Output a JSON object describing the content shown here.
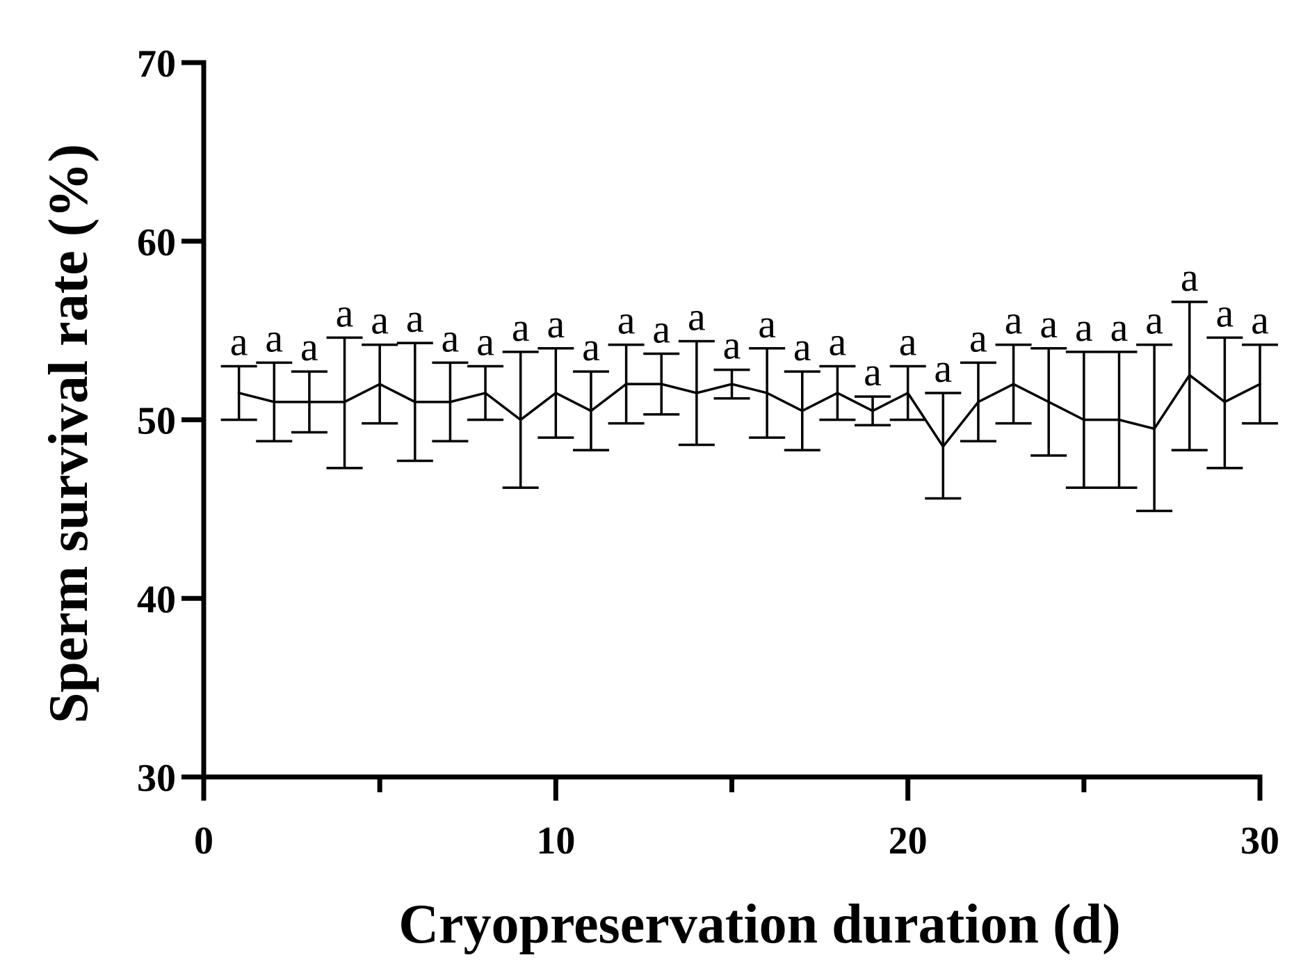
{
  "chart_data": {
    "type": "line",
    "title": "",
    "xlabel": "Cryopreservation duration (d)",
    "ylabel": "Sperm survival rate (%)",
    "xlim": [
      0,
      30
    ],
    "ylim": [
      30,
      70
    ],
    "x_major_ticks": [
      0,
      10,
      20,
      30
    ],
    "x_minor_ticks": [
      5,
      15,
      25
    ],
    "y_ticks": [
      30,
      40,
      50,
      60,
      70
    ],
    "grid": false,
    "legend": "none",
    "line_color": "#000000",
    "series": [
      {
        "x": [
          1,
          2,
          3,
          4,
          5,
          6,
          7,
          8,
          9,
          10,
          11,
          12,
          13,
          14,
          15,
          16,
          17,
          18,
          19,
          20,
          21,
          22,
          23,
          24,
          25,
          26,
          27,
          28,
          29,
          30
        ],
        "y": [
          51.5,
          51.0,
          51.0,
          51.0,
          52.0,
          51.0,
          51.0,
          51.5,
          50.0,
          51.5,
          50.5,
          52.0,
          52.0,
          51.5,
          52.0,
          51.5,
          50.5,
          51.5,
          50.5,
          51.5,
          48.5,
          51.0,
          52.0,
          51.0,
          50.0,
          50.0,
          49.5,
          52.5,
          51.0,
          52.0
        ],
        "err_low": [
          50.0,
          48.8,
          49.3,
          47.3,
          49.8,
          47.7,
          48.8,
          50.0,
          46.2,
          49.0,
          48.3,
          49.8,
          50.3,
          48.6,
          51.2,
          49.0,
          48.3,
          50.0,
          49.7,
          50.0,
          45.6,
          48.8,
          49.8,
          48.0,
          46.2,
          46.2,
          44.9,
          48.3,
          47.3,
          49.8
        ],
        "err_high": [
          53.0,
          53.2,
          52.7,
          54.6,
          54.2,
          54.3,
          53.2,
          53.0,
          53.8,
          54.0,
          52.7,
          54.2,
          53.7,
          54.4,
          52.8,
          54.0,
          52.7,
          53.0,
          51.3,
          53.0,
          51.5,
          53.2,
          54.2,
          54.0,
          53.8,
          53.8,
          54.2,
          56.6,
          54.6,
          54.2
        ],
        "significance": [
          "a",
          "a",
          "a",
          "a",
          "a",
          "a",
          "a",
          "a",
          "a",
          "a",
          "a",
          "a",
          "a",
          "a",
          "a",
          "a",
          "a",
          "a",
          "a",
          "a",
          "a",
          "a",
          "a",
          "a",
          "a",
          "a",
          "a",
          "a",
          "a",
          "a"
        ]
      }
    ]
  }
}
